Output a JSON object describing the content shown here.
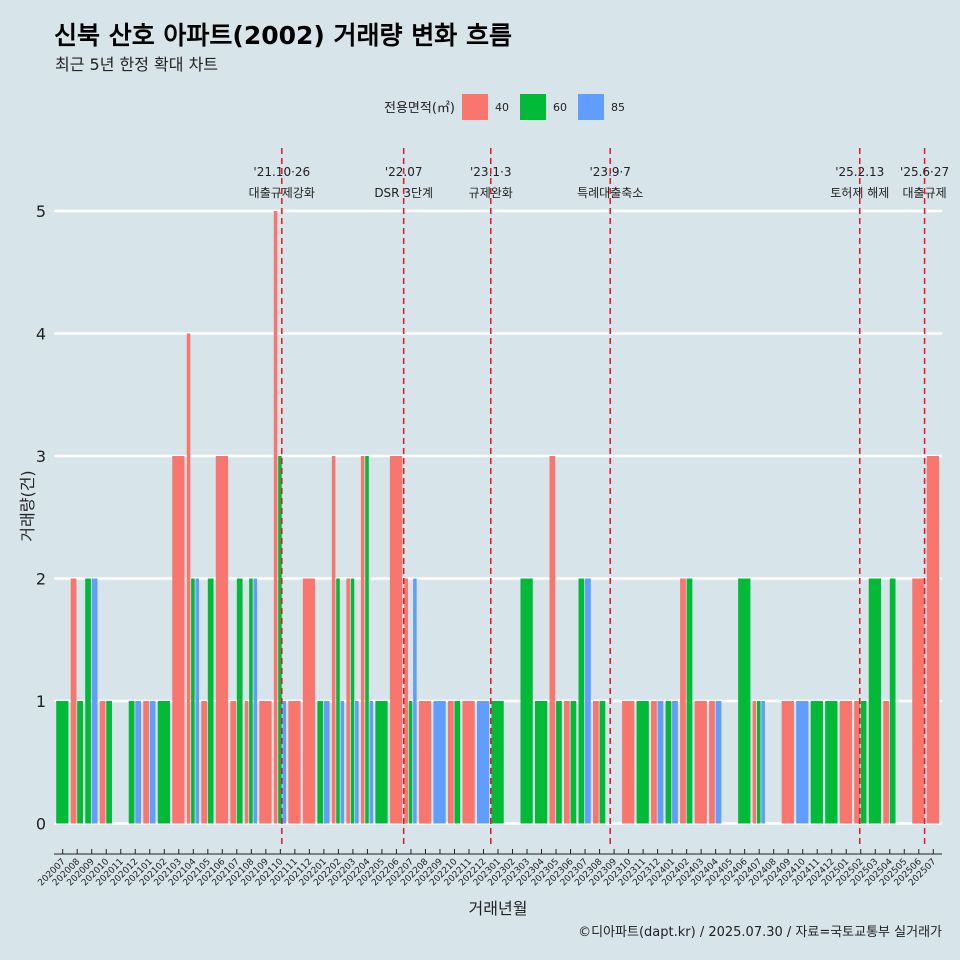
{
  "chart_data": {
    "type": "bar",
    "title": "신북 산호 아파트(2002) 거래량 변화 흐름",
    "subtitle": "최근 5년 한정 확대 차트",
    "xlabel": "거래년월",
    "ylabel": "거래량(건)",
    "ylim": [
      -0.25,
      5.6
    ],
    "yticks": [
      0,
      1,
      2,
      3,
      4,
      5
    ],
    "grid": true,
    "legend": {
      "title": "전용면적(㎡)",
      "position": "top",
      "entries": [
        {
          "label": "40",
          "color": "#F8766D"
        },
        {
          "label": "60",
          "color": "#00BA38"
        },
        {
          "label": "85",
          "color": "#619CFF"
        }
      ]
    },
    "caption": "©디아파트(dapt.kr) / 2025.07.30 / 자료=국토교통부 실거래가",
    "months": [
      "202007",
      "202008",
      "202009",
      "202010",
      "202011",
      "202012",
      "202101",
      "202102",
      "202103",
      "202104",
      "202105",
      "202106",
      "202107",
      "202108",
      "202109",
      "202110",
      "202111",
      "202112",
      "202201",
      "202202",
      "202203",
      "202204",
      "202205",
      "202206",
      "202207",
      "202208",
      "202209",
      "202210",
      "202211",
      "202212",
      "202301",
      "202302",
      "202303",
      "202304",
      "202305",
      "202306",
      "202307",
      "202308",
      "202309",
      "202310",
      "202311",
      "202312",
      "202401",
      "202402",
      "202403",
      "202404",
      "202405",
      "202406",
      "202407",
      "202408",
      "202409",
      "202410",
      "202411",
      "202412",
      "202501",
      "202502",
      "202503",
      "202504",
      "202505",
      "202506",
      "202507"
    ],
    "bars": [
      {
        "m": "202007",
        "s": [
          [
            "60",
            1
          ]
        ]
      },
      {
        "m": "202008",
        "s": [
          [
            "40",
            2
          ],
          [
            "60",
            1
          ]
        ]
      },
      {
        "m": "202009",
        "s": [
          [
            "60",
            2
          ],
          [
            "85",
            2
          ]
        ]
      },
      {
        "m": "202010",
        "s": [
          [
            "40",
            1
          ],
          [
            "60",
            1
          ]
        ]
      },
      {
        "m": "202012",
        "s": [
          [
            "60",
            1
          ],
          [
            "85",
            1
          ]
        ]
      },
      {
        "m": "202101",
        "s": [
          [
            "40",
            1
          ],
          [
            "85",
            1
          ]
        ]
      },
      {
        "m": "202102",
        "s": [
          [
            "60",
            1
          ]
        ]
      },
      {
        "m": "202103",
        "s": [
          [
            "40",
            3
          ]
        ]
      },
      {
        "m": "202104",
        "s": [
          [
            "40",
            4
          ],
          [
            "60",
            2
          ],
          [
            "85",
            2
          ]
        ]
      },
      {
        "m": "202105",
        "s": [
          [
            "40",
            1
          ],
          [
            "60",
            2
          ]
        ]
      },
      {
        "m": "202106",
        "s": [
          [
            "40",
            3
          ]
        ]
      },
      {
        "m": "202107",
        "s": [
          [
            "40",
            1
          ],
          [
            "60",
            2
          ]
        ]
      },
      {
        "m": "202108",
        "s": [
          [
            "40",
            1
          ],
          [
            "60",
            2
          ],
          [
            "85",
            2
          ]
        ]
      },
      {
        "m": "202109",
        "s": [
          [
            "40",
            1
          ]
        ]
      },
      {
        "m": "202110",
        "s": [
          [
            "40",
            5
          ],
          [
            "60",
            3
          ],
          [
            "85",
            1
          ]
        ]
      },
      {
        "m": "202111",
        "s": [
          [
            "40",
            1
          ]
        ]
      },
      {
        "m": "202112",
        "s": [
          [
            "40",
            2
          ]
        ]
      },
      {
        "m": "202201",
        "s": [
          [
            "60",
            1
          ],
          [
            "85",
            1
          ]
        ]
      },
      {
        "m": "202202",
        "s": [
          [
            "40",
            3
          ],
          [
            "60",
            2
          ],
          [
            "85",
            1
          ]
        ]
      },
      {
        "m": "202203",
        "s": [
          [
            "40",
            2
          ],
          [
            "60",
            2
          ],
          [
            "85",
            1
          ]
        ]
      },
      {
        "m": "202204",
        "s": [
          [
            "40",
            3
          ],
          [
            "60",
            3
          ],
          [
            "85",
            1
          ]
        ]
      },
      {
        "m": "202205",
        "s": [
          [
            "60",
            1
          ]
        ]
      },
      {
        "m": "202206",
        "s": [
          [
            "40",
            3
          ]
        ]
      },
      {
        "m": "202207",
        "s": [
          [
            "40",
            2
          ],
          [
            "60",
            1
          ],
          [
            "85",
            2
          ]
        ]
      },
      {
        "m": "202208",
        "s": [
          [
            "40",
            1
          ]
        ]
      },
      {
        "m": "202209",
        "s": [
          [
            "85",
            1
          ]
        ]
      },
      {
        "m": "202210",
        "s": [
          [
            "40",
            1
          ],
          [
            "60",
            1
          ]
        ]
      },
      {
        "m": "202211",
        "s": [
          [
            "40",
            1
          ]
        ]
      },
      {
        "m": "202212",
        "s": [
          [
            "85",
            1
          ]
        ]
      },
      {
        "m": "202301",
        "s": [
          [
            "60",
            1
          ]
        ]
      },
      {
        "m": "202303",
        "s": [
          [
            "60",
            2
          ]
        ]
      },
      {
        "m": "202304",
        "s": [
          [
            "60",
            1
          ]
        ]
      },
      {
        "m": "202305",
        "s": [
          [
            "40",
            3
          ],
          [
            "60",
            1
          ]
        ]
      },
      {
        "m": "202306",
        "s": [
          [
            "40",
            1
          ],
          [
            "60",
            1
          ]
        ]
      },
      {
        "m": "202307",
        "s": [
          [
            "60",
            2
          ],
          [
            "85",
            2
          ]
        ]
      },
      {
        "m": "202308",
        "s": [
          [
            "40",
            1
          ],
          [
            "60",
            1
          ]
        ]
      },
      {
        "m": "202310",
        "s": [
          [
            "40",
            1
          ]
        ]
      },
      {
        "m": "202311",
        "s": [
          [
            "60",
            1
          ]
        ]
      },
      {
        "m": "202312",
        "s": [
          [
            "40",
            1
          ],
          [
            "85",
            1
          ]
        ]
      },
      {
        "m": "202401",
        "s": [
          [
            "60",
            1
          ],
          [
            "85",
            1
          ]
        ]
      },
      {
        "m": "202402",
        "s": [
          [
            "40",
            2
          ],
          [
            "60",
            2
          ]
        ]
      },
      {
        "m": "202403",
        "s": [
          [
            "40",
            1
          ]
        ]
      },
      {
        "m": "202404",
        "s": [
          [
            "40",
            1
          ],
          [
            "85",
            1
          ]
        ]
      },
      {
        "m": "202406",
        "s": [
          [
            "60",
            2
          ]
        ]
      },
      {
        "m": "202407",
        "s": [
          [
            "40",
            1
          ],
          [
            "60",
            1
          ],
          [
            "85",
            1
          ]
        ]
      },
      {
        "m": "202409",
        "s": [
          [
            "40",
            1
          ]
        ]
      },
      {
        "m": "202410",
        "s": [
          [
            "85",
            1
          ]
        ]
      },
      {
        "m": "202411",
        "s": [
          [
            "60",
            1
          ]
        ]
      },
      {
        "m": "202412",
        "s": [
          [
            "60",
            1
          ]
        ]
      },
      {
        "m": "202501",
        "s": [
          [
            "40",
            1
          ]
        ]
      },
      {
        "m": "202502",
        "s": [
          [
            "40",
            1
          ],
          [
            "60",
            1
          ]
        ]
      },
      {
        "m": "202503",
        "s": [
          [
            "60",
            2
          ]
        ]
      },
      {
        "m": "202504",
        "s": [
          [
            "40",
            1
          ],
          [
            "60",
            2
          ]
        ]
      },
      {
        "m": "202506",
        "s": [
          [
            "40",
            2
          ]
        ]
      },
      {
        "m": "202507",
        "s": [
          [
            "40",
            3
          ]
        ]
      }
    ],
    "events": [
      {
        "m": "202110",
        "d": 18,
        "date": "'21.10·26",
        "label": "대출규제강화"
      },
      {
        "m": "202207",
        "d": 0,
        "date": "'22.07",
        "label": "DSR 3단계"
      },
      {
        "m": "202301",
        "d": 0,
        "date": "'23.1·3",
        "label": "규제완화"
      },
      {
        "m": "202309",
        "d": 7,
        "date": "'23.9·7",
        "label": "특례대출축소"
      },
      {
        "m": "202502",
        "d": 13,
        "date": "'25.2.13",
        "label": "토허제 해제"
      },
      {
        "m": "202506",
        "d": 27,
        "date": "'25.6·27",
        "label": "대출규제"
      }
    ]
  }
}
